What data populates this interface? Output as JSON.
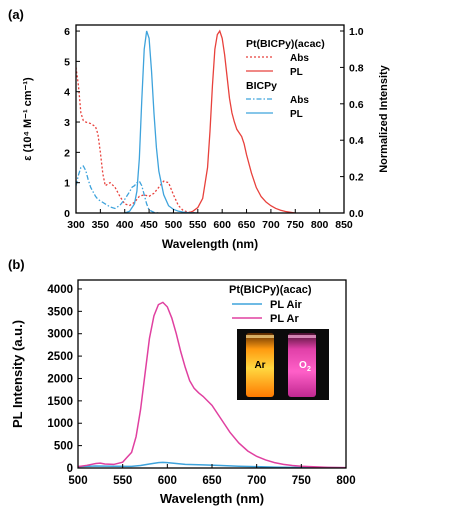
{
  "chart_data": [
    {
      "panel_label": "(a)",
      "type": "line",
      "xlabel": "Wavelength (nm)",
      "xlim": [
        300,
        850
      ],
      "xticks": [
        300,
        350,
        400,
        450,
        500,
        550,
        600,
        650,
        700,
        750,
        800,
        850
      ],
      "ylabel_left": "ε (10⁴ M⁻¹ cm⁻¹)",
      "ylim_left": [
        0,
        6.2
      ],
      "yticks_left": [
        0,
        1,
        2,
        3,
        4,
        5,
        6
      ],
      "ylabel_right": "Normalized Intensity",
      "ylim_right": [
        0,
        1.033
      ],
      "yticks_right": [
        "0.0",
        "0.2",
        "0.4",
        "0.6",
        "0.8",
        "1.0"
      ],
      "legend": {
        "placement": "top-right",
        "groups": [
          {
            "title": "Pt(BICPy)(acac)",
            "entries": [
              {
                "label": "Abs",
                "series": 0
              },
              {
                "label": "PL",
                "series": 1
              }
            ]
          },
          {
            "title": "BICPy",
            "entries": [
              {
                "label": "Abs",
                "series": 2
              },
              {
                "label": "PL",
                "series": 3
              }
            ]
          }
        ]
      },
      "series": [
        {
          "axis": "left",
          "color": "#e8413c",
          "dash": "dot",
          "x": [
            300,
            305,
            310,
            315,
            320,
            330,
            340,
            345,
            350,
            355,
            360,
            365,
            370,
            380,
            390,
            400,
            410,
            420,
            430,
            440,
            450,
            460,
            470,
            480,
            490,
            500,
            510,
            520,
            530,
            540,
            550
          ],
          "y": [
            4.8,
            4.2,
            3.3,
            3.05,
            3.0,
            2.95,
            2.85,
            2.6,
            2.0,
            1.3,
            0.9,
            0.95,
            1.0,
            0.85,
            0.55,
            0.3,
            0.25,
            0.35,
            0.55,
            0.6,
            0.55,
            0.65,
            0.85,
            1.05,
            1.0,
            0.6,
            0.25,
            0.08,
            0.03,
            0.01,
            0.0
          ]
        },
        {
          "axis": "right",
          "color": "#e8413c",
          "dash": "solid",
          "x": [
            530,
            540,
            550,
            560,
            570,
            575,
            580,
            585,
            590,
            595,
            600,
            605,
            610,
            615,
            620,
            625,
            630,
            640,
            645,
            650,
            660,
            670,
            680,
            690,
            700,
            710,
            720,
            730,
            740,
            750
          ],
          "y": [
            0.0,
            0.01,
            0.03,
            0.08,
            0.25,
            0.45,
            0.7,
            0.9,
            0.98,
            1.0,
            0.96,
            0.87,
            0.75,
            0.63,
            0.55,
            0.5,
            0.46,
            0.42,
            0.38,
            0.32,
            0.22,
            0.14,
            0.09,
            0.06,
            0.04,
            0.025,
            0.015,
            0.008,
            0.004,
            0.0
          ]
        },
        {
          "axis": "left",
          "color": "#3ea3dc",
          "dash": "dashdot",
          "x": [
            300,
            305,
            310,
            315,
            320,
            325,
            330,
            335,
            340,
            345,
            350,
            360,
            370,
            380,
            390,
            400,
            410,
            415,
            420,
            425,
            430,
            435,
            440,
            445,
            450,
            460,
            470
          ],
          "y": [
            0.9,
            1.25,
            1.5,
            1.55,
            1.4,
            1.1,
            0.85,
            0.7,
            0.55,
            0.45,
            0.4,
            0.3,
            0.2,
            0.15,
            0.25,
            0.45,
            0.7,
            0.85,
            0.9,
            1.0,
            1.05,
            0.9,
            0.6,
            0.3,
            0.1,
            0.02,
            0.0
          ]
        },
        {
          "axis": "right",
          "color": "#3ea3dc",
          "dash": "solid",
          "x": [
            400,
            410,
            420,
            425,
            430,
            435,
            440,
            445,
            450,
            455,
            460,
            465,
            470,
            480,
            490,
            500,
            510,
            520,
            530,
            540,
            550
          ],
          "y": [
            0.0,
            0.01,
            0.05,
            0.12,
            0.3,
            0.62,
            0.9,
            1.0,
            0.96,
            0.78,
            0.55,
            0.36,
            0.23,
            0.1,
            0.04,
            0.02,
            0.01,
            0.005,
            0.002,
            0.001,
            0.0
          ]
        }
      ]
    },
    {
      "panel_label": "(b)",
      "type": "line",
      "xlabel": "Wavelength (nm)",
      "xlim": [
        500,
        800
      ],
      "xticks": [
        500,
        550,
        600,
        650,
        700,
        750,
        800
      ],
      "ylabel": "PL Intensity (a.u.)",
      "ylim": [
        0,
        4200
      ],
      "yticks": [
        0,
        500,
        1000,
        1500,
        2000,
        2500,
        3000,
        3500,
        4000
      ],
      "legend": {
        "placement": "top-right",
        "title": "Pt(BICPy)(acac)",
        "entries": [
          {
            "label": "PL Air",
            "series": 0
          },
          {
            "label": "PL Ar",
            "series": 1
          }
        ]
      },
      "inset": {
        "type": "photo",
        "labels": [
          {
            "text": "Ar"
          },
          {
            "text": "O",
            "subscript": "2"
          }
        ]
      },
      "series": [
        {
          "color": "#3ea3dc",
          "x": [
            500,
            520,
            540,
            560,
            570,
            580,
            590,
            595,
            600,
            610,
            620,
            640,
            660,
            680,
            700,
            720,
            740,
            760,
            780,
            800
          ],
          "y": [
            30,
            45,
            40,
            35,
            55,
            90,
            120,
            125,
            120,
            100,
            80,
            70,
            55,
            40,
            30,
            20,
            15,
            10,
            8,
            5
          ]
        },
        {
          "color": "#e040a0",
          "x": [
            500,
            510,
            520,
            525,
            530,
            540,
            550,
            560,
            565,
            570,
            575,
            580,
            585,
            590,
            595,
            600,
            605,
            610,
            615,
            620,
            625,
            630,
            635,
            640,
            645,
            650,
            660,
            670,
            680,
            690,
            700,
            710,
            720,
            730,
            740,
            750,
            760,
            770,
            780,
            790,
            800
          ],
          "y": [
            30,
            60,
            100,
            110,
            90,
            80,
            130,
            350,
            700,
            1300,
            2100,
            2900,
            3400,
            3650,
            3700,
            3600,
            3350,
            3000,
            2600,
            2250,
            1950,
            1780,
            1680,
            1600,
            1500,
            1400,
            1100,
            800,
            560,
            380,
            260,
            180,
            120,
            80,
            55,
            40,
            30,
            22,
            15,
            10,
            8
          ]
        }
      ]
    }
  ]
}
